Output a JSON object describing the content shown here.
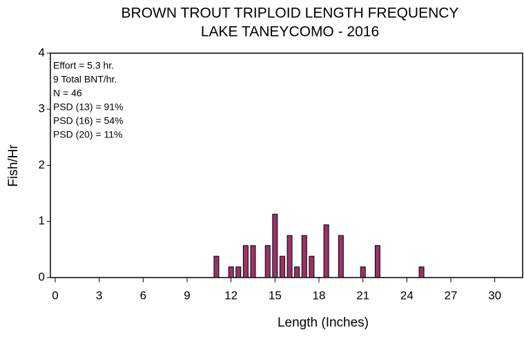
{
  "chart_data": {
    "type": "bar",
    "title": [
      "BROWN TROUT TRIPLOID LENGTH FREQUENCY",
      "LAKE TANEYCOMO - 2016"
    ],
    "xlabel": "Length (Inches)",
    "ylabel": "Fish/Hr",
    "annotations": [
      "Effort = 5.3 hr.",
      "9 Total BNT/hr.",
      "N = 46",
      "PSD (13) = 91%",
      "PSD (16) = 54%",
      "PSD (20) = 11%"
    ],
    "x": [
      11,
      12,
      12.5,
      13,
      13.5,
      14.5,
      15,
      15.5,
      16,
      16.5,
      17,
      17.5,
      18.5,
      19.5,
      21,
      22,
      25
    ],
    "values": [
      0.38,
      0.19,
      0.19,
      0.57,
      0.57,
      0.57,
      1.13,
      0.38,
      0.75,
      0.19,
      0.75,
      0.38,
      0.94,
      0.75,
      0.19,
      0.57,
      0.19
    ],
    "color": "#993366",
    "xlim": [
      -0.33,
      31.9
    ],
    "xticks": [
      0,
      3,
      6,
      9,
      12,
      15,
      18,
      21,
      24,
      27,
      30
    ],
    "ylim": [
      0,
      4
    ],
    "yticks": [
      0,
      1,
      2,
      3,
      4
    ]
  }
}
